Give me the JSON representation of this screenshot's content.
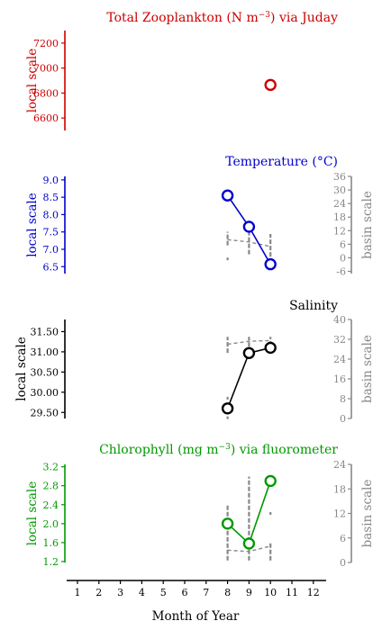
{
  "chart_data": [
    {
      "type": "scatter",
      "title_main": "Total Zooplankton (N m",
      "title_sup": "−3",
      "title_rest": ") via Juday",
      "title_color": "#cc0000",
      "ylabel": "local scale",
      "ylim": [
        6500,
        7300
      ],
      "yticks": [
        "6600",
        "6800",
        "7000",
        "7200"
      ],
      "axis_color": "#cc0000",
      "series": [
        {
          "x": [
            10
          ],
          "y": [
            6865
          ]
        }
      ]
    },
    {
      "type": "line",
      "title_main": "Temperature (°C)",
      "title_sup": "",
      "title_rest": "",
      "title_color": "#0000cc",
      "ylabel": "local scale",
      "ylim": [
        6.3,
        9.1
      ],
      "yticks": [
        "6.5",
        "7.0",
        "7.5",
        "8.0",
        "8.5",
        "9.0"
      ],
      "axis_color": "#0000cc",
      "series": [
        {
          "x": [
            8,
            9,
            10
          ],
          "y": [
            8.55,
            7.65,
            6.57
          ]
        }
      ],
      "basin": {
        "ylabel": "basin scale",
        "ylim": [
          -7,
          36
        ],
        "yticks": [
          "-6",
          "0",
          "6",
          "12",
          "18",
          "24",
          "30",
          "36"
        ],
        "mean_x": [
          8,
          9,
          10
        ],
        "mean_y": [
          8,
          7,
          5
        ],
        "ranges": [
          {
            "x": 8,
            "lo": 5.5,
            "hi": 11.5,
            "dots": [
              -0.5
            ]
          },
          {
            "x": 9,
            "lo": 1.5,
            "hi": 12,
            "dots": []
          },
          {
            "x": 10,
            "lo": 0.5,
            "hi": 10.5,
            "dots": []
          }
        ]
      }
    },
    {
      "type": "line",
      "title_main": "Salinity",
      "title_sup": "",
      "title_rest": "",
      "title_color": "#000000",
      "ylabel": "local scale",
      "ylim": [
        29.35,
        31.8
      ],
      "yticks": [
        "29.50",
        "30.00",
        "30.50",
        "31.00",
        "31.50"
      ],
      "axis_color": "#000000",
      "series": [
        {
          "x": [
            8,
            9,
            10
          ],
          "y": [
            29.6,
            30.97,
            31.1
          ]
        }
      ],
      "basin": {
        "ylabel": "basin scale",
        "ylim": [
          0,
          40
        ],
        "yticks": [
          "0",
          "8",
          "16",
          "24",
          "32",
          "40"
        ],
        "mean_x": [
          8,
          9,
          10
        ],
        "mean_y": [
          30,
          31.2,
          31.5
        ],
        "ranges": [
          {
            "x": 8,
            "lo": 26.5,
            "hi": 33,
            "dots": [
              8.2,
              0.3
            ]
          },
          {
            "x": 9,
            "lo": 29,
            "hi": 33,
            "dots": []
          },
          {
            "x": 10,
            "lo": 29.5,
            "hi": 33,
            "dots": []
          }
        ]
      }
    },
    {
      "type": "line",
      "title_main": "Chlorophyll (mg m",
      "title_sup": "−3",
      "title_rest": ") via fluorometer",
      "title_color": "#009900",
      "ylabel": "local scale",
      "ylim": [
        1.18,
        3.25
      ],
      "yticks": [
        "1.2",
        "1.6",
        "2.0",
        "2.4",
        "2.8",
        "3.2"
      ],
      "axis_color": "#009900",
      "series": [
        {
          "x": [
            8,
            9,
            10
          ],
          "y": [
            2.0,
            1.58,
            2.9
          ]
        }
      ],
      "basin": {
        "ylabel": "basin scale",
        "ylim": [
          0,
          24
        ],
        "yticks": [
          "0",
          "6",
          "12",
          "18",
          "24"
        ],
        "mean_x": [
          8,
          9,
          10
        ],
        "mean_y": [
          3,
          2.7,
          4
        ],
        "ranges": [
          {
            "x": 8,
            "lo": 0.5,
            "hi": 14,
            "dots": []
          },
          {
            "x": 9,
            "lo": 0.5,
            "hi": 21,
            "dots": []
          },
          {
            "x": 10,
            "lo": 0.5,
            "hi": 5,
            "dots": [
              12
            ]
          }
        ]
      }
    }
  ],
  "xaxis": {
    "label": "Month of Year",
    "ticks": [
      "1",
      "2",
      "3",
      "4",
      "5",
      "6",
      "7",
      "8",
      "9",
      "10",
      "11",
      "12"
    ]
  },
  "colors": {
    "basin": "#888888",
    "text": "#000000"
  }
}
